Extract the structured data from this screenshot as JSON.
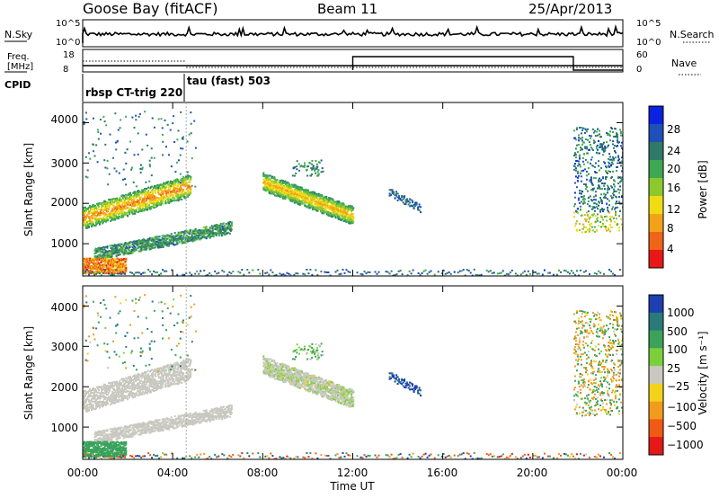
{
  "header": {
    "station": "Goose Bay (fitACF)",
    "beam": "Beam 11",
    "date": "25/Apr/2013"
  },
  "noise_panel": {
    "left_label": "N.Sky",
    "left_ticks": [
      "10^5",
      "10^0"
    ],
    "right_ticks": [
      "10^5",
      "10^0"
    ],
    "right_label": "N.Search"
  },
  "freq_panel": {
    "left_label_1": "Freq.",
    "left_label_2": "[MHz]",
    "left_ticks": [
      "18",
      "8"
    ],
    "right_ticks": [
      "60",
      "0"
    ],
    "right_label": "Nave",
    "cpid_label": "CPID",
    "cpid_1": "rbsp CT-trig 220",
    "cpid_2": "tau (fast) 503"
  },
  "power_panel": {
    "ylabel": "Slant Range [km]",
    "yticks": [
      "4000",
      "3000",
      "2000",
      "1000"
    ],
    "colorbar_label": "Power [dB]",
    "colorbar_ticks": [
      "28",
      "24",
      "20",
      "16",
      "12",
      "8",
      "4"
    ],
    "colors": [
      "#0b22e0",
      "#1f4fb8",
      "#2f7a66",
      "#3ea853",
      "#8dc82d",
      "#f0dc12",
      "#f2a21a",
      "#ee6418",
      "#e81818"
    ]
  },
  "velocity_panel": {
    "ylabel": "Slant Range [km]",
    "yticks": [
      "4000",
      "3000",
      "2000",
      "1000"
    ],
    "colorbar_label": "Velocity [m s⁻¹]",
    "colorbar_ticks": [
      "1000",
      "500",
      "100",
      "25",
      "−25",
      "−100",
      "−500",
      "−1000"
    ],
    "colors": [
      "#1d3fb0",
      "#2a7a7a",
      "#3aa25a",
      "#7ccf3c",
      "#c8c8c0",
      "#f2d21a",
      "#f29a1e",
      "#ef5a16",
      "#e51818"
    ]
  },
  "xaxis": {
    "label": "Time UT",
    "ticks": [
      "00:00",
      "04:00",
      "08:00",
      "12:00",
      "16:00",
      "20:00",
      "00:00"
    ]
  },
  "chart_data": {
    "type": "heatmap",
    "title": "Goose Bay (fitACF)",
    "xlabel": "Time UT",
    "ylabel": "Slant Range [km]",
    "xlim_hours": [
      0,
      24
    ],
    "ylim_km": [
      200,
      4500
    ],
    "series": [
      {
        "name": "Power [dB]",
        "range": [
          0,
          30
        ]
      },
      {
        "name": "Velocity [m s⁻¹]",
        "range": [
          -1000,
          1000
        ]
      }
    ],
    "frequency_mhz": [
      {
        "start": 0,
        "end": 12,
        "value": 10
      },
      {
        "start": 12,
        "end": 22,
        "value": 10
      }
    ],
    "nave": [
      {
        "start": 0,
        "end": 12,
        "value": 0
      },
      {
        "start": 12,
        "end": 22,
        "value": 45
      },
      {
        "start": 22,
        "end": 24,
        "value": 0
      }
    ],
    "cpid": [
      {
        "start": 0,
        "end": 4.7,
        "label": "rbsp CT-trig 220"
      },
      {
        "start": 4.7,
        "end": 24,
        "label": "tau (fast) 503"
      }
    ],
    "scatter_bands": [
      {
        "t0": 0.0,
        "t1": 4.7,
        "r0": 1600,
        "r1": 2400,
        "power": 14,
        "velocity": 0
      },
      {
        "t0": 0.5,
        "t1": 6.5,
        "r0": 700,
        "r1": 1400,
        "power": 8,
        "velocity": 0
      },
      {
        "t0": 0.0,
        "t1": 1.8,
        "r0": 250,
        "r1": 650,
        "power": 24,
        "velocity": 90
      },
      {
        "t0": 8.0,
        "t1": 12.0,
        "r0": 1600,
        "r1": 2700,
        "power": 14,
        "velocity": 10
      },
      {
        "t0": 21.8,
        "t1": 24.0,
        "r0": 1300,
        "r1": 3800,
        "power": 12,
        "velocity": 0
      },
      {
        "t0": 13.5,
        "t1": 15.0,
        "r0": 1800,
        "r1": 2400,
        "power": 6,
        "velocity": 800
      }
    ]
  }
}
